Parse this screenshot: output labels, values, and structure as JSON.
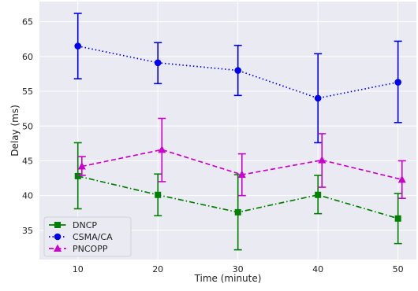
{
  "chart_data": {
    "type": "line",
    "xlabel": "Time (minute)",
    "ylabel": "Delay (ms)",
    "x": [
      10,
      20,
      30,
      40,
      50
    ],
    "xlim": [
      5.2,
      52.3
    ],
    "ylim": [
      30.8,
      67.9
    ],
    "xticks": [
      "10",
      "20",
      "30",
      "40",
      "50"
    ],
    "yticks": [
      "35",
      "40",
      "45",
      "50",
      "55",
      "60",
      "65"
    ],
    "grid": true,
    "legend_position": "bottom-left",
    "series": [
      {
        "name": "DNCP",
        "color": "#008000",
        "marker": "square",
        "line_style": "dash-dot",
        "x_offset": 0.0,
        "values": [
          42.8,
          40.1,
          37.6,
          40.1,
          36.7
        ],
        "err_low": [
          38.1,
          37.1,
          32.2,
          37.4,
          33.1
        ],
        "err_high": [
          47.6,
          43.1,
          43.0,
          42.9,
          40.3
        ]
      },
      {
        "name": "CSMA/CA",
        "color": "#0000ee",
        "marker": "circle",
        "line_style": "dotted",
        "x_offset": 0.0,
        "values": [
          61.5,
          59.1,
          58.0,
          54.0,
          56.3
        ],
        "err_low": [
          56.8,
          56.1,
          54.4,
          47.6,
          50.5
        ],
        "err_high": [
          66.2,
          62.0,
          61.6,
          60.4,
          62.2
        ]
      },
      {
        "name": "PNCOPP",
        "color": "#cc00cc",
        "marker": "triangle",
        "line_style": "dashed",
        "x_offset": 0.5,
        "values": [
          44.2,
          46.6,
          43.0,
          45.1,
          42.3
        ],
        "err_low": [
          42.9,
          42.0,
          40.0,
          41.2,
          39.6
        ],
        "err_high": [
          45.6,
          51.1,
          46.0,
          48.9,
          45.0
        ]
      }
    ]
  }
}
